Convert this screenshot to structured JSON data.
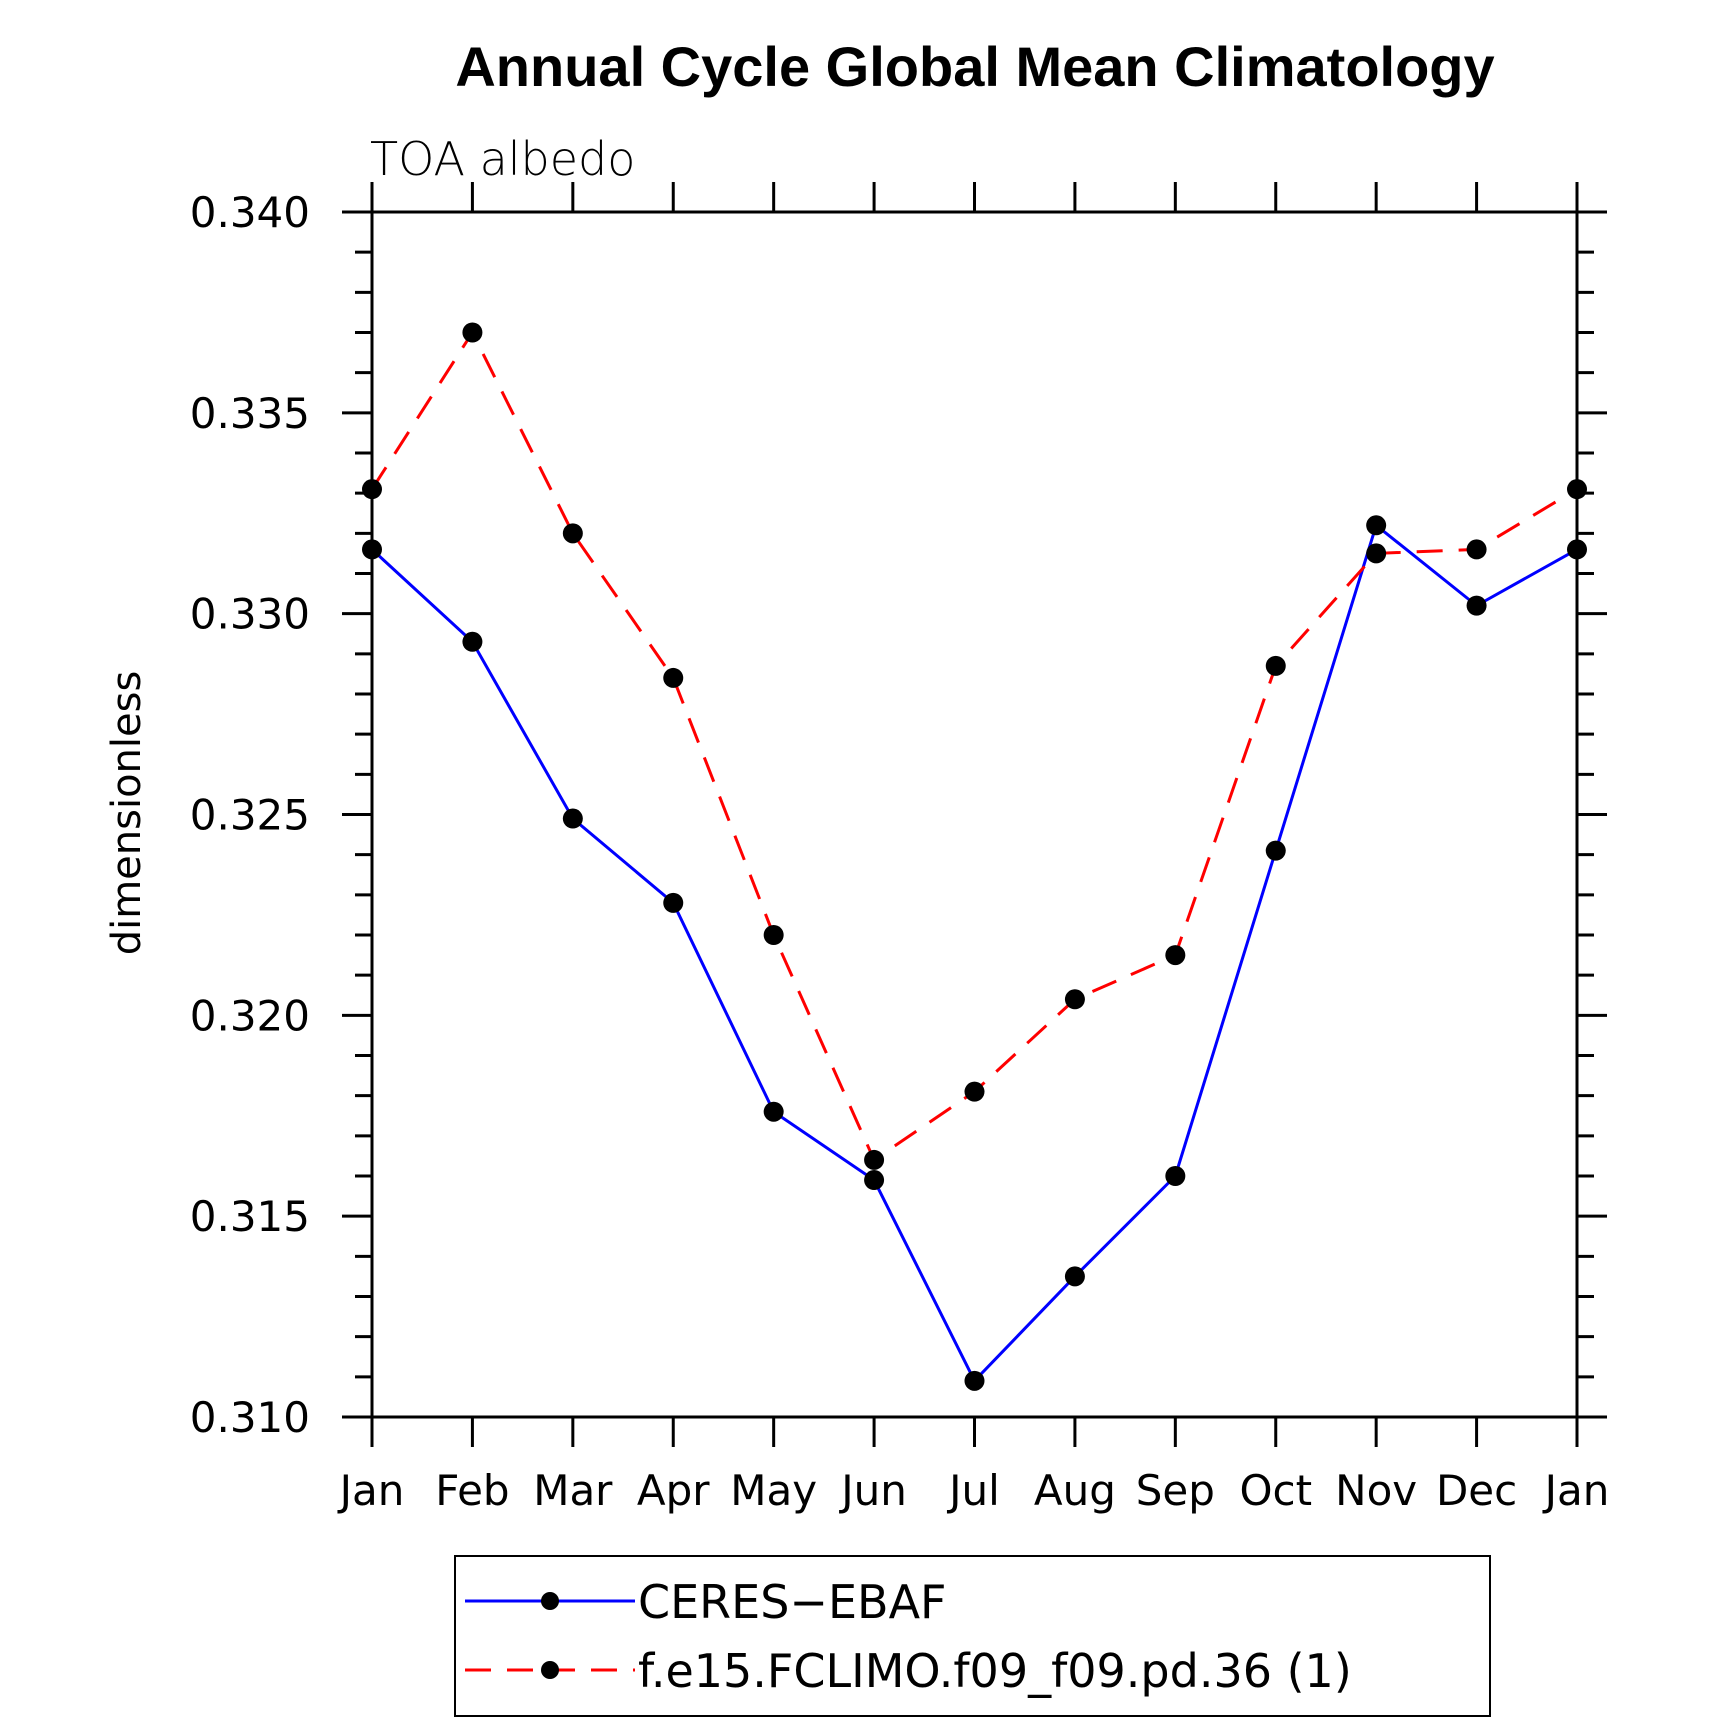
{
  "chart_data": {
    "type": "line",
    "title": "Annual Cycle Global Mean Climatology",
    "subtitle": "TOA albedo",
    "xlabel": "",
    "ylabel": "dimensionless",
    "categories": [
      "Jan",
      "Feb",
      "Mar",
      "Apr",
      "May",
      "Jun",
      "Jul",
      "Aug",
      "Sep",
      "Oct",
      "Nov",
      "Dec",
      "Jan"
    ],
    "ylim": [
      0.31,
      0.34
    ],
    "yticks": [
      "0.340",
      "0.335",
      "0.330",
      "0.325",
      "0.320",
      "0.315",
      "0.310"
    ],
    "series": [
      {
        "name": "CERES−EBAF",
        "color": "#0000ff",
        "dash": "solid",
        "marker": "filled-circle",
        "values": [
          0.3316,
          0.3293,
          0.3249,
          0.3228,
          0.3176,
          0.3159,
          0.3109,
          0.3135,
          0.316,
          0.3241,
          0.3322,
          0.3302,
          0.3316
        ]
      },
      {
        "name": "f.e15.FCLIMO.f09_f09.pd.36 (1)",
        "color": "#ff0000",
        "dash": "dashed",
        "marker": "filled-circle",
        "values": [
          0.3331,
          0.337,
          0.332,
          0.3284,
          0.322,
          0.3164,
          0.3181,
          0.3204,
          0.3215,
          0.3287,
          0.3315,
          0.3316,
          0.3331
        ]
      }
    ],
    "legend_position": "bottom",
    "grid": false
  }
}
